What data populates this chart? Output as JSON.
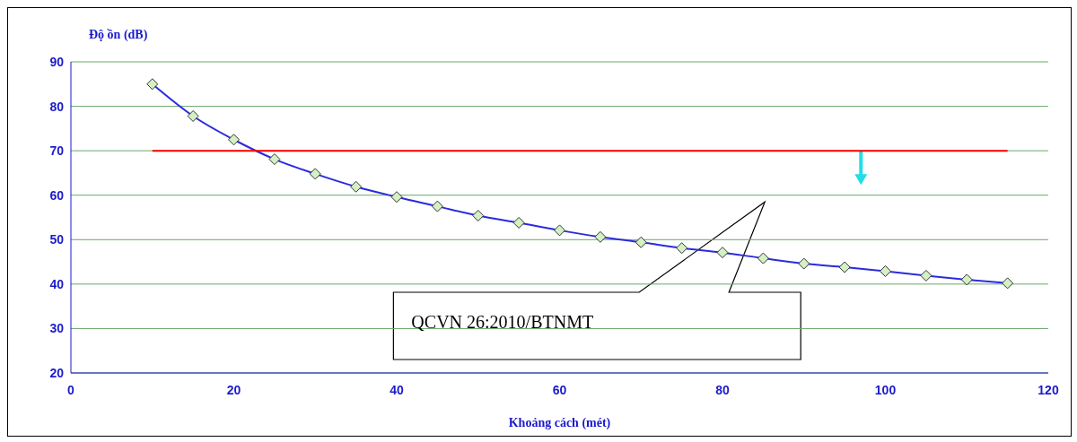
{
  "chart_data": {
    "type": "line",
    "ylabel": "Độ ồn (dB)",
    "xlabel": "Khoảng cách (mét)",
    "xlim": [
      0,
      120
    ],
    "xticks": [
      0,
      20,
      40,
      60,
      80,
      100,
      120
    ],
    "ylim": [
      20,
      90
    ],
    "yticks": [
      20,
      30,
      40,
      50,
      60,
      70,
      80,
      90
    ],
    "grid": "y",
    "series": [
      {
        "color": "#2b2bdc",
        "marker": "diamond",
        "x": [
          10,
          15,
          20,
          25,
          30,
          35,
          40,
          45,
          50,
          55,
          60,
          65,
          70,
          75,
          80,
          85,
          90,
          95,
          100,
          105,
          110,
          115
        ],
        "values": [
          85,
          77.8,
          72.5,
          68.1,
          64.8,
          61.9,
          59.6,
          57.5,
          55.4,
          53.8,
          52.1,
          50.6,
          49.4,
          48.1,
          47.1,
          45.8,
          44.6,
          43.8,
          42.9,
          41.9,
          41,
          40.2
        ]
      },
      {
        "color": "#ff0000",
        "marker": "none",
        "x": [
          10,
          115
        ],
        "values": [
          70,
          70
        ]
      }
    ],
    "annotations": [
      "QCVN 26:2010/BTNMT"
    ]
  }
}
